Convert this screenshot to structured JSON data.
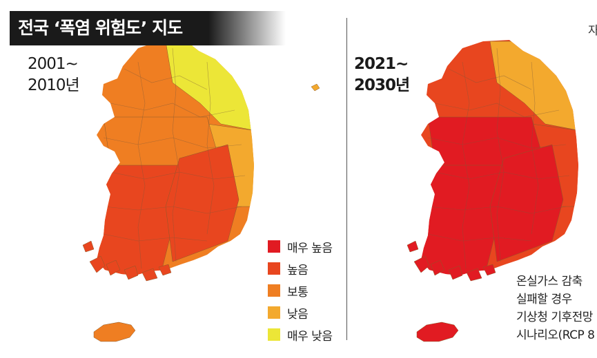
{
  "title": "전국 ‘폭염 위험도’ 지도",
  "corner_char": "자",
  "maps": {
    "left": {
      "period_line1": "2001~",
      "period_line2": "2010년",
      "zone_levels": {
        "northwest": "보통",
        "northeast": "매우 낮음",
        "east_coast": "낮음",
        "center": "보통",
        "southwest": "높음",
        "southeast": "높음",
        "jeju": "보통"
      }
    },
    "right": {
      "period_line1": "2021~",
      "period_line2": "2030년",
      "zone_levels": {
        "northwest": "높음",
        "northeast": "낮음",
        "east_coast": "높음",
        "center": "매우 높음",
        "southwest": "매우 높음",
        "southeast": "매우 높음",
        "jeju": "매우 높음"
      }
    }
  },
  "legend": {
    "items": [
      {
        "label": "매우 높음",
        "color": "#e11b22"
      },
      {
        "label": "높음",
        "color": "#e8461f"
      },
      {
        "label": "보통",
        "color": "#ef7e22"
      },
      {
        "label": "낮음",
        "color": "#f3a92e"
      },
      {
        "label": "매우 낮음",
        "color": "#ece637"
      }
    ]
  },
  "scenario_note": {
    "lines": [
      "온실가스 감축 ",
      "실패할 경우",
      "기상청 기후전망",
      "시나리오(RCP 8"
    ]
  }
}
